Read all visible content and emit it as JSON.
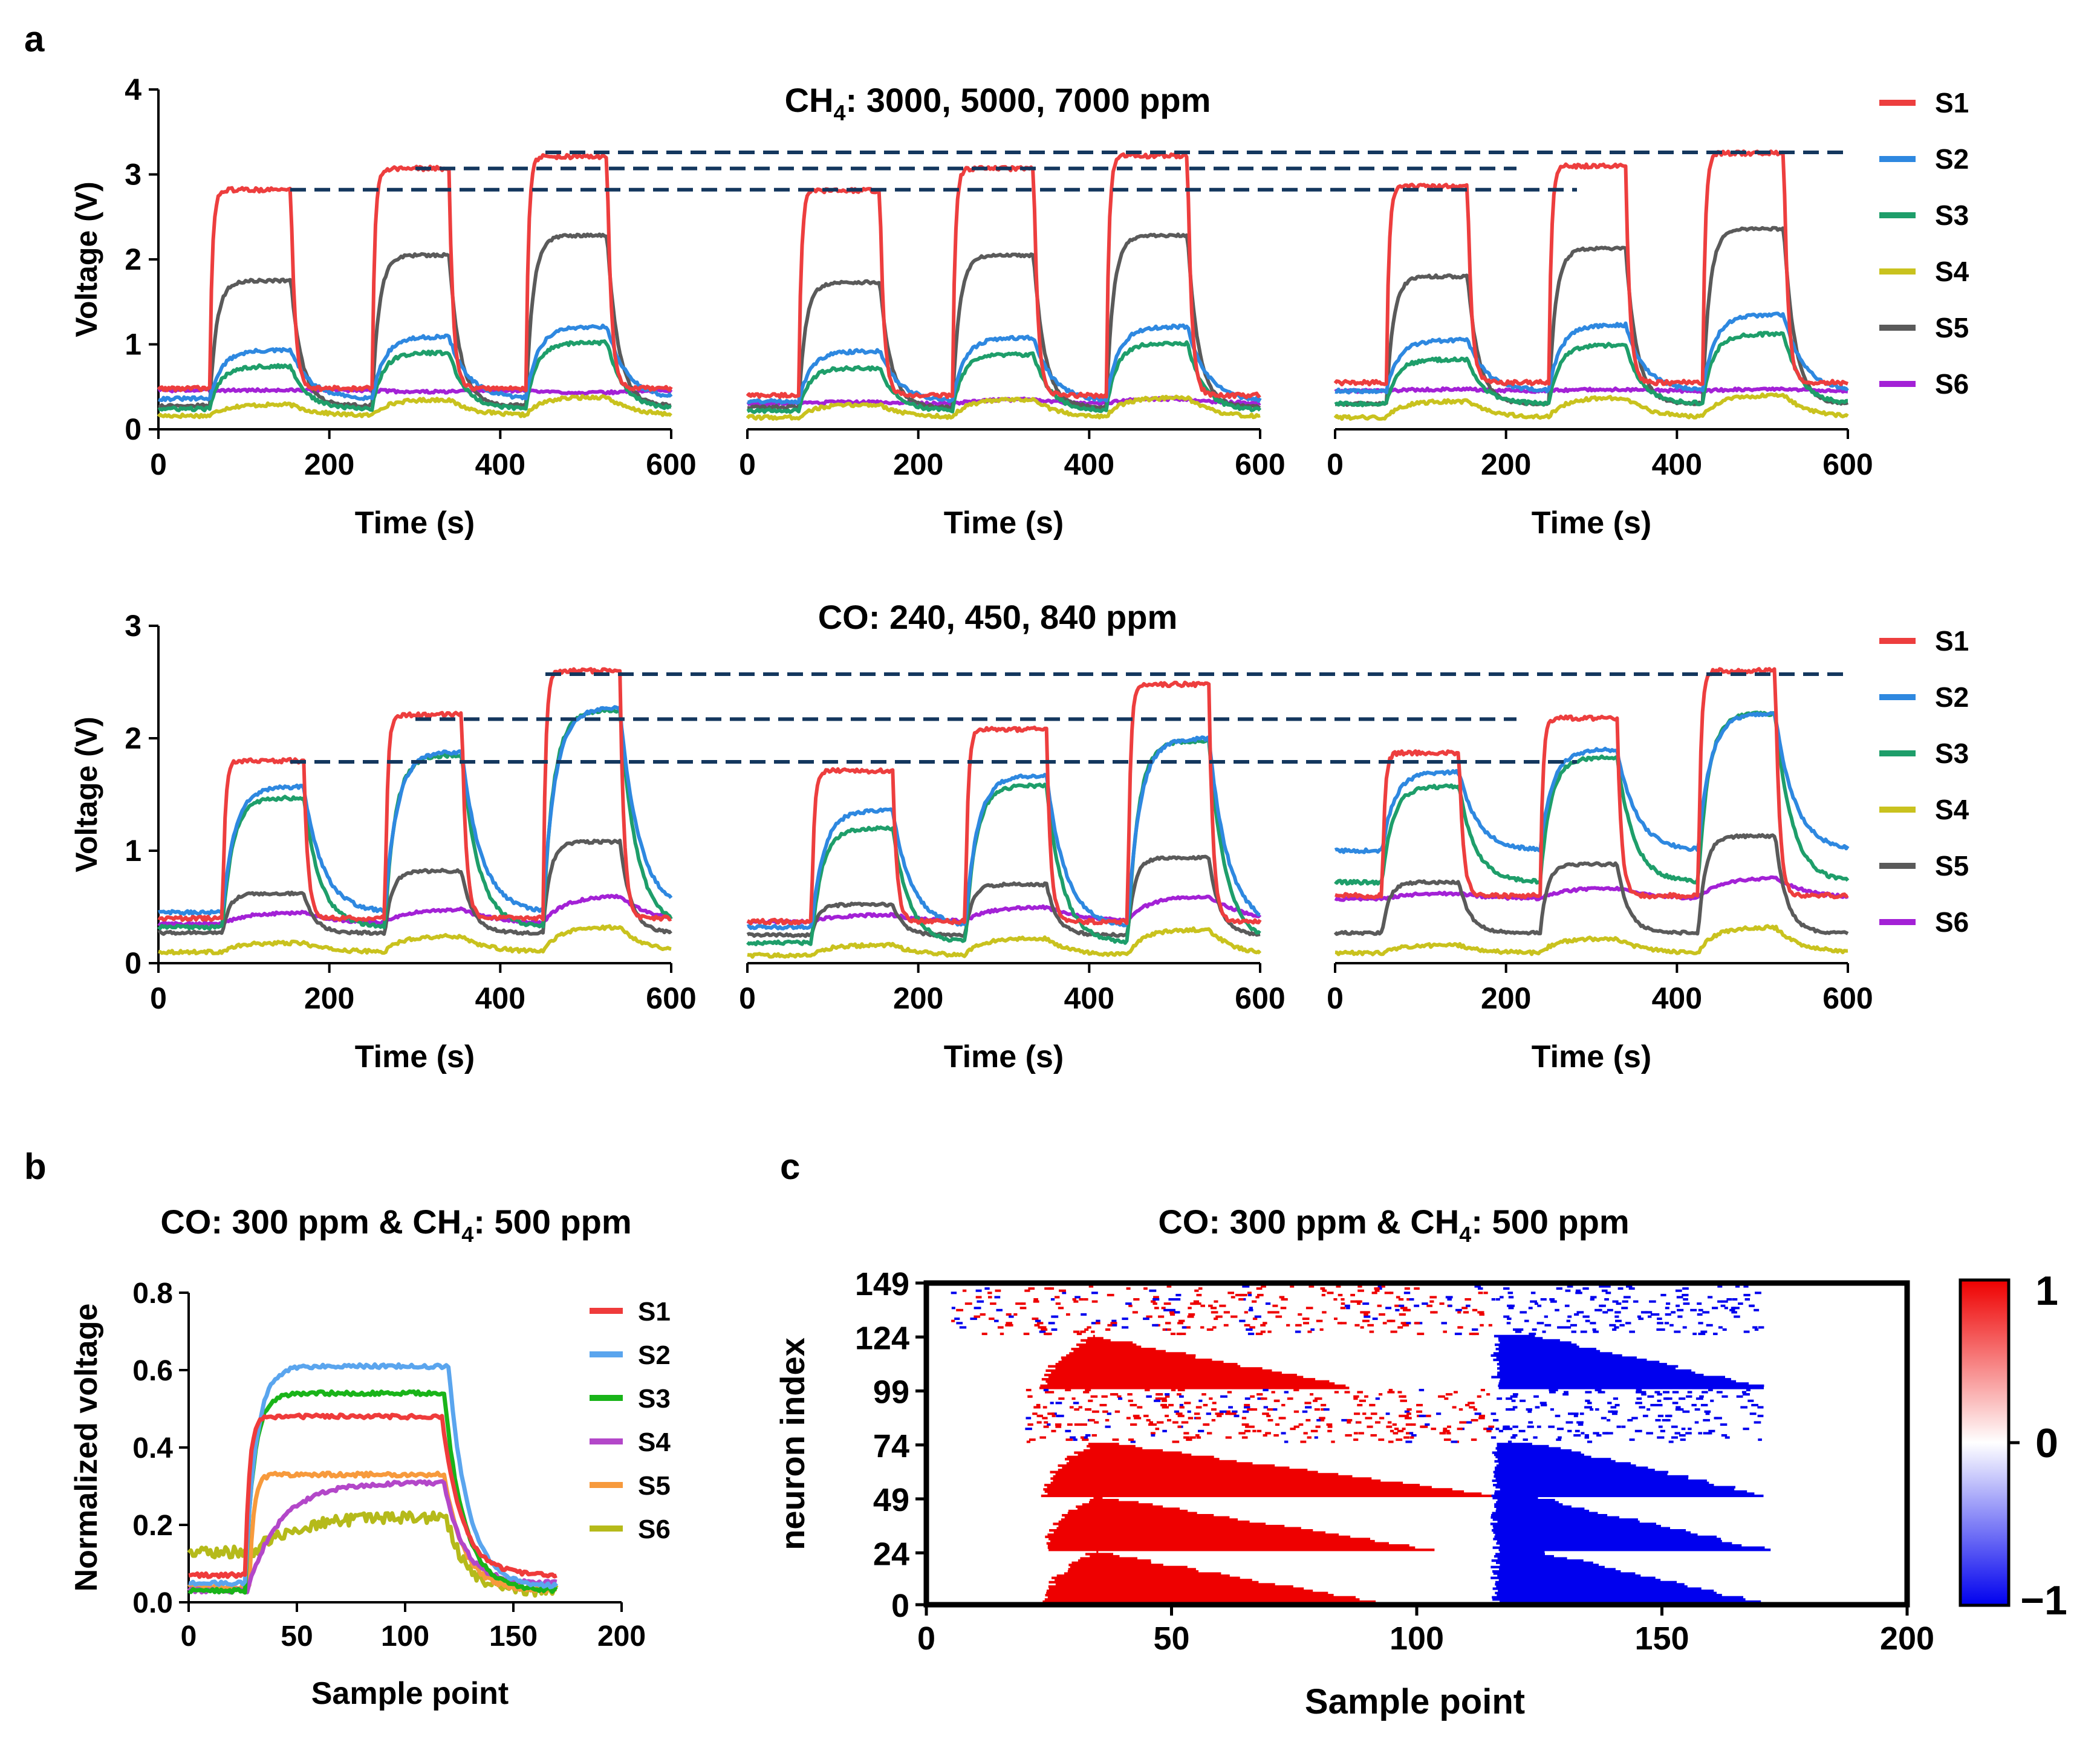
{
  "figure": {
    "panel_labels": [
      "a",
      "b",
      "c"
    ],
    "colors": {
      "S1": "#ed3e3e",
      "S2": "#2e88e0",
      "S3": "#1e9e6a",
      "S4": "#c9c21e",
      "S5": "#5a5a5a",
      "S6": "#a321d6",
      "b_S1": "#ef3b3b",
      "b_S2": "#5aa5ee",
      "b_S3": "#19b419",
      "b_S4": "#b347c9",
      "b_S5": "#f79a3c",
      "b_S6": "#b5ba1a",
      "dashed": "#14375e",
      "heat_pos": "#ee0000",
      "heat_neg": "#0000ee"
    }
  },
  "chart_data": [
    {
      "id": "a-ch4",
      "type": "line",
      "title": "CH4: 3000, 5000, 7000 ppm",
      "title_text": "CH",
      "title_sub": "4",
      "title_rest": ": 3000, 5000, 7000 ppm",
      "ylabel": "Voltage (V)",
      "xlabel": "Time (s)",
      "xlim": [
        0,
        600
      ],
      "ylim": [
        0,
        4
      ],
      "xticks": [
        "0",
        "200",
        "400",
        "600"
      ],
      "yticks": [
        "0",
        "1",
        "2",
        "3",
        "4"
      ],
      "legend": [
        "S1",
        "S2",
        "S3",
        "S4",
        "S5",
        "S6"
      ],
      "reference_levels": [
        2.82,
        3.07,
        3.26
      ],
      "subplots": [
        {
          "segments": [
            [
              60,
              155
            ],
            [
              250,
              340
            ],
            [
              430,
              525
            ]
          ],
          "baseline": {
            "S1": 0.48,
            "S2": 0.36,
            "S3": 0.24,
            "S4": 0.16,
            "S5": 0.28,
            "S6": 0.46
          },
          "plateau": {
            "S1": [
              2.82,
              3.07,
              3.21
            ],
            "S2": [
              0.93,
              1.09,
              1.21
            ],
            "S3": [
              0.74,
              0.9,
              1.02
            ],
            "S4": [
              0.29,
              0.35,
              0.38
            ],
            "S5": [
              1.75,
              2.05,
              2.28
            ],
            "S6": [
              0.46,
              0.44,
              0.43
            ]
          }
        },
        {
          "segments": [
            [
              60,
              155
            ],
            [
              240,
              335
            ],
            [
              420,
              515
            ]
          ],
          "baseline": {
            "S1": 0.4,
            "S2": 0.33,
            "S3": 0.22,
            "S4": 0.14,
            "S5": 0.26,
            "S6": 0.3
          },
          "plateau": {
            "S1": [
              2.81,
              3.07,
              3.22
            ],
            "S2": [
              0.92,
              1.08,
              1.21
            ],
            "S3": [
              0.72,
              0.88,
              1.01
            ],
            "S4": [
              0.29,
              0.35,
              0.37
            ],
            "S5": [
              1.73,
              2.05,
              2.28
            ],
            "S6": [
              0.32,
              0.35,
              0.36
            ]
          }
        },
        {
          "segments": [
            [
              60,
              155
            ],
            [
              250,
              340
            ],
            [
              430,
              525
            ]
          ],
          "baseline": {
            "S1": 0.55,
            "S2": 0.45,
            "S3": 0.3,
            "S4": 0.14,
            "S5": 0.3,
            "S6": 0.45
          },
          "plateau": {
            "S1": [
              2.86,
              3.1,
              3.25
            ],
            "S2": [
              1.05,
              1.23,
              1.35
            ],
            "S3": [
              0.82,
              0.99,
              1.12
            ],
            "S4": [
              0.33,
              0.37,
              0.4
            ],
            "S5": [
              1.8,
              2.13,
              2.36
            ],
            "S6": [
              0.47,
              0.47,
              0.47
            ]
          }
        }
      ]
    },
    {
      "id": "a-co",
      "type": "line",
      "title": "CO: 240, 450, 840 ppm",
      "ylabel": "Voltage (V)",
      "xlabel": "Time (s)",
      "xlim": [
        0,
        600
      ],
      "ylim": [
        0,
        3
      ],
      "xticks": [
        "0",
        "200",
        "400",
        "600"
      ],
      "yticks": [
        "0",
        "1",
        "2",
        "3"
      ],
      "legend": [
        "S1",
        "S2",
        "S3",
        "S4",
        "S5",
        "S6"
      ],
      "reference_levels": [
        1.79,
        2.17,
        2.57
      ],
      "subplots": [
        {
          "segments": [
            [
              75,
              170
            ],
            [
              265,
              355
            ],
            [
              450,
              540
            ]
          ],
          "baseline": {
            "S1": 0.4,
            "S2": 0.45,
            "S3": 0.32,
            "S4": 0.1,
            "S5": 0.27,
            "S6": 0.35
          },
          "plateau": {
            "S1": [
              1.8,
              2.21,
              2.6
            ],
            "S2": [
              1.57,
              1.88,
              2.27
            ],
            "S3": [
              1.47,
              1.85,
              2.25
            ],
            "S4": [
              0.18,
              0.24,
              0.32
            ],
            "S5": [
              0.62,
              0.82,
              1.08
            ],
            "S6": [
              0.45,
              0.48,
              0.6
            ]
          }
        },
        {
          "segments": [
            [
              75,
              170
            ],
            [
              255,
              350
            ],
            [
              445,
              540
            ]
          ],
          "baseline": {
            "S1": 0.37,
            "S2": 0.32,
            "S3": 0.18,
            "S4": 0.07,
            "S5": 0.25,
            "S6": 0.37
          },
          "plateau": {
            "S1": [
              1.71,
              2.08,
              2.48
            ],
            "S2": [
              1.36,
              1.67,
              2.0
            ],
            "S3": [
              1.2,
              1.58,
              1.98
            ],
            "S4": [
              0.16,
              0.22,
              0.3
            ],
            "S5": [
              0.52,
              0.7,
              0.94
            ],
            "S6": [
              0.43,
              0.5,
              0.6
            ]
          }
        },
        {
          "segments": [
            [
              55,
              145
            ],
            [
              240,
              330
            ],
            [
              425,
              515
            ]
          ],
          "baseline": {
            "S1": 0.6,
            "S2": 1.0,
            "S3": 0.72,
            "S4": 0.09,
            "S5": 0.27,
            "S6": 0.57
          },
          "plateau": {
            "S1": [
              1.87,
              2.18,
              2.6
            ],
            "S2": [
              1.7,
              1.9,
              2.22
            ],
            "S3": [
              1.57,
              1.83,
              2.22
            ],
            "S4": [
              0.16,
              0.22,
              0.32
            ],
            "S5": [
              0.72,
              0.88,
              1.13
            ],
            "S6": [
              0.62,
              0.67,
              0.76
            ]
          }
        }
      ]
    },
    {
      "id": "b",
      "type": "line",
      "title": "CO: 300 ppm & CH4: 500 ppm",
      "title_text": "CO: 300 ppm & CH",
      "title_sub": "4",
      "title_rest": ": 500 ppm",
      "xlabel": "Sample point",
      "ylabel": "Normalized voltage",
      "xlim": [
        0,
        200
      ],
      "ylim": [
        0,
        0.8
      ],
      "xticks": [
        "0",
        "50",
        "100",
        "150",
        "200"
      ],
      "yticks": [
        "0.0",
        "0.2",
        "0.4",
        "0.6",
        "0.8"
      ],
      "legend": [
        "S1",
        "S2",
        "S3",
        "S4",
        "S5",
        "S6"
      ],
      "x_end": 170,
      "series": [
        {
          "name": "S1",
          "base": 0.07,
          "rise": 26,
          "tau": 2,
          "plateau": 0.48,
          "fall": 117,
          "end": 0.07
        },
        {
          "name": "S2",
          "base": 0.05,
          "rise": 26,
          "tau": 5,
          "plateau": 0.61,
          "fall": 120,
          "end": 0.04
        },
        {
          "name": "S3",
          "base": 0.03,
          "rise": 26,
          "tau": 4,
          "plateau": 0.54,
          "fall": 118,
          "end": 0.03
        },
        {
          "name": "S4",
          "base": 0.03,
          "rise": 27,
          "tau": 15,
          "plateau": 0.31,
          "fall": 118,
          "end": 0.05
        },
        {
          "name": "S5",
          "base": 0.04,
          "rise": 28,
          "tau": 2,
          "plateau": 0.33,
          "fall": 118,
          "end": 0.03
        },
        {
          "name": "S6",
          "base": 0.13,
          "rise": 30,
          "tau": 18,
          "plateau": 0.22,
          "fall": 119,
          "end": 0.03
        }
      ]
    },
    {
      "id": "c",
      "type": "heatmap",
      "title": "CO: 300 ppm & CH4: 500 ppm",
      "title_text": "CO: 300 ppm & CH",
      "title_sub": "4",
      "title_rest": ": 500 ppm",
      "xlabel": "Sample point",
      "ylabel": "neuron index",
      "xlim": [
        0,
        200
      ],
      "ylim": [
        0,
        149
      ],
      "xticks": [
        "0",
        "50",
        "100",
        "150",
        "200"
      ],
      "yticks": [
        "0",
        "24",
        "49",
        "74",
        "99",
        "124",
        "149"
      ],
      "colorbar": {
        "max_label": "1",
        "mid_label": "0",
        "min_label": "−1",
        "range": [
          -1,
          1
        ]
      },
      "positive_bands": [
        [
          0,
          24,
          23,
          92
        ],
        [
          25,
          49,
          23,
          102
        ],
        [
          50,
          74,
          23,
          115
        ],
        [
          100,
          124,
          23,
          86
        ]
      ],
      "negative_bands": [
        [
          0,
          24,
          115,
          170
        ],
        [
          25,
          49,
          115,
          170
        ],
        [
          50,
          74,
          115,
          170
        ],
        [
          100,
          124,
          115,
          170
        ]
      ],
      "sparse_bands": [
        [
          75,
          99,
          20,
          170
        ],
        [
          125,
          149,
          5,
          170
        ]
      ]
    }
  ]
}
